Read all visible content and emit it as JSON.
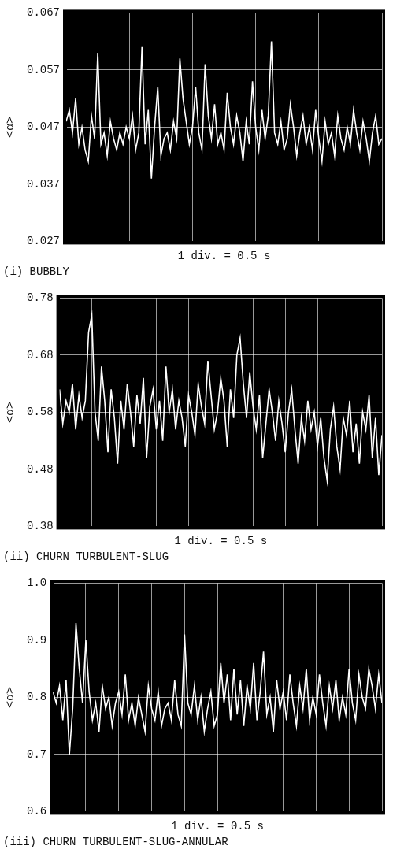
{
  "chart_data": [
    {
      "type": "line",
      "title": "(i) BUBBLY",
      "xlabel": "1 div. = 0.5 s",
      "ylabel": "<α>",
      "x": [
        0,
        0.05,
        0.1,
        0.15,
        0.2,
        0.25,
        0.3,
        0.35,
        0.4,
        0.45,
        0.5,
        0.55,
        0.6,
        0.65,
        0.7,
        0.75,
        0.8,
        0.85,
        0.9,
        0.95,
        1,
        1.05,
        1.1,
        1.15,
        1.2,
        1.25,
        1.3,
        1.35,
        1.4,
        1.45,
        1.5,
        1.55,
        1.6,
        1.65,
        1.7,
        1.75,
        1.8,
        1.85,
        1.9,
        1.95,
        2,
        2.05,
        2.1,
        2.15,
        2.2,
        2.25,
        2.3,
        2.35,
        2.4,
        2.45,
        2.5,
        2.55,
        2.6,
        2.65,
        2.7,
        2.75,
        2.8,
        2.85,
        2.9,
        2.95,
        3,
        3.05,
        3.1,
        3.15,
        3.2,
        3.25,
        3.3,
        3.35,
        3.4,
        3.45,
        3.5,
        3.55,
        3.6,
        3.65,
        3.7,
        3.75,
        3.8,
        3.85,
        3.9,
        3.95,
        4,
        4.05,
        4.1,
        4.15,
        4.2,
        4.25,
        4.3,
        4.35,
        4.4,
        4.45,
        4.5,
        4.55,
        4.6,
        4.65,
        4.7,
        4.75,
        4.8,
        4.85,
        4.9,
        4.95,
        5
      ],
      "values": [
        0.048,
        0.05,
        0.046,
        0.052,
        0.044,
        0.047,
        0.043,
        0.041,
        0.049,
        0.045,
        0.06,
        0.044,
        0.046,
        0.042,
        0.048,
        0.045,
        0.043,
        0.046,
        0.044,
        0.047,
        0.045,
        0.049,
        0.043,
        0.046,
        0.061,
        0.044,
        0.05,
        0.038,
        0.047,
        0.054,
        0.042,
        0.045,
        0.046,
        0.043,
        0.048,
        0.045,
        0.059,
        0.052,
        0.048,
        0.044,
        0.047,
        0.054,
        0.046,
        0.043,
        0.058,
        0.049,
        0.045,
        0.051,
        0.044,
        0.046,
        0.043,
        0.053,
        0.047,
        0.044,
        0.049,
        0.046,
        0.041,
        0.048,
        0.044,
        0.055,
        0.047,
        0.043,
        0.05,
        0.045,
        0.049,
        0.062,
        0.046,
        0.044,
        0.048,
        0.043,
        0.045,
        0.051,
        0.047,
        0.042,
        0.046,
        0.049,
        0.044,
        0.047,
        0.043,
        0.05,
        0.045,
        0.041,
        0.048,
        0.044,
        0.046,
        0.042,
        0.049,
        0.045,
        0.043,
        0.047,
        0.044,
        0.05,
        0.046,
        0.043,
        0.048,
        0.045,
        0.041,
        0.046,
        0.049,
        0.044,
        0.045
      ],
      "color": "#ffffff",
      "xlim": [
        0,
        5
      ],
      "xticks": [
        0,
        0.5,
        1,
        1.5,
        2,
        2.5,
        3,
        3.5,
        4,
        4.5,
        5
      ],
      "ylim": [
        0.027,
        0.067
      ],
      "yticks": [
        0.027,
        0.037,
        0.047,
        0.057,
        0.067
      ],
      "grid": true,
      "tick_labels": "y"
    },
    {
      "type": "line",
      "title": "(ii) CHURN TURBULENT-SLUG",
      "xlabel": "1 div. = 0.5 s",
      "ylabel": "<α>",
      "x": [
        0,
        0.05,
        0.1,
        0.15,
        0.2,
        0.25,
        0.3,
        0.35,
        0.4,
        0.45,
        0.5,
        0.55,
        0.6,
        0.65,
        0.7,
        0.75,
        0.8,
        0.85,
        0.9,
        0.95,
        1,
        1.05,
        1.1,
        1.15,
        1.2,
        1.25,
        1.3,
        1.35,
        1.4,
        1.45,
        1.5,
        1.55,
        1.6,
        1.65,
        1.7,
        1.75,
        1.8,
        1.85,
        1.9,
        1.95,
        2,
        2.05,
        2.1,
        2.15,
        2.2,
        2.25,
        2.3,
        2.35,
        2.4,
        2.45,
        2.5,
        2.55,
        2.6,
        2.65,
        2.7,
        2.75,
        2.8,
        2.85,
        2.9,
        2.95,
        3,
        3.05,
        3.1,
        3.15,
        3.2,
        3.25,
        3.3,
        3.35,
        3.4,
        3.45,
        3.5,
        3.55,
        3.6,
        3.65,
        3.7,
        3.75,
        3.8,
        3.85,
        3.9,
        3.95,
        4,
        4.05,
        4.1,
        4.15,
        4.2,
        4.25,
        4.3,
        4.35,
        4.4,
        4.45,
        4.5,
        4.55,
        4.6,
        4.65,
        4.7,
        4.75,
        4.8,
        4.85,
        4.9,
        4.95,
        5
      ],
      "values": [
        0.62,
        0.56,
        0.6,
        0.58,
        0.63,
        0.55,
        0.61,
        0.57,
        0.6,
        0.72,
        0.75,
        0.58,
        0.53,
        0.66,
        0.6,
        0.51,
        0.62,
        0.57,
        0.49,
        0.6,
        0.55,
        0.63,
        0.58,
        0.52,
        0.61,
        0.56,
        0.64,
        0.5,
        0.59,
        0.62,
        0.55,
        0.6,
        0.53,
        0.66,
        0.58,
        0.62,
        0.55,
        0.6,
        0.57,
        0.52,
        0.61,
        0.58,
        0.54,
        0.63,
        0.59,
        0.56,
        0.67,
        0.61,
        0.55,
        0.58,
        0.64,
        0.6,
        0.52,
        0.62,
        0.57,
        0.68,
        0.71,
        0.63,
        0.57,
        0.65,
        0.59,
        0.55,
        0.61,
        0.5,
        0.56,
        0.62,
        0.58,
        0.53,
        0.6,
        0.56,
        0.51,
        0.58,
        0.62,
        0.55,
        0.49,
        0.57,
        0.53,
        0.6,
        0.55,
        0.58,
        0.52,
        0.57,
        0.5,
        0.46,
        0.55,
        0.59,
        0.52,
        0.48,
        0.57,
        0.54,
        0.6,
        0.51,
        0.56,
        0.49,
        0.58,
        0.55,
        0.61,
        0.5,
        0.57,
        0.47,
        0.54
      ],
      "color": "#ffffff",
      "xlim": [
        0,
        5
      ],
      "xticks": [
        0,
        0.5,
        1,
        1.5,
        2,
        2.5,
        3,
        3.5,
        4,
        4.5,
        5
      ],
      "ylim": [
        0.38,
        0.78
      ],
      "yticks": [
        0.38,
        0.48,
        0.58,
        0.68,
        0.78
      ],
      "grid": true,
      "tick_labels": "y"
    },
    {
      "type": "line",
      "title": "(iii) CHURN TURBULENT-SLUG-ANNULAR",
      "xlabel": "1 div. = 0.5 s",
      "ylabel": "<α>",
      "x": [
        0,
        0.05,
        0.1,
        0.15,
        0.2,
        0.25,
        0.3,
        0.35,
        0.4,
        0.45,
        0.5,
        0.55,
        0.6,
        0.65,
        0.7,
        0.75,
        0.8,
        0.85,
        0.9,
        0.95,
        1,
        1.05,
        1.1,
        1.15,
        1.2,
        1.25,
        1.3,
        1.35,
        1.4,
        1.45,
        1.5,
        1.55,
        1.6,
        1.65,
        1.7,
        1.75,
        1.8,
        1.85,
        1.9,
        1.95,
        2,
        2.05,
        2.1,
        2.15,
        2.2,
        2.25,
        2.3,
        2.35,
        2.4,
        2.45,
        2.5,
        2.55,
        2.6,
        2.65,
        2.7,
        2.75,
        2.8,
        2.85,
        2.9,
        2.95,
        3,
        3.05,
        3.1,
        3.15,
        3.2,
        3.25,
        3.3,
        3.35,
        3.4,
        3.45,
        3.5,
        3.55,
        3.6,
        3.65,
        3.7,
        3.75,
        3.8,
        3.85,
        3.9,
        3.95,
        4,
        4.05,
        4.1,
        4.15,
        4.2,
        4.25,
        4.3,
        4.35,
        4.4,
        4.45,
        4.5,
        4.55,
        4.6,
        4.65,
        4.7,
        4.75,
        4.8,
        4.85,
        4.9,
        4.95,
        5
      ],
      "values": [
        0.81,
        0.79,
        0.82,
        0.76,
        0.83,
        0.7,
        0.78,
        0.93,
        0.85,
        0.79,
        0.9,
        0.81,
        0.76,
        0.79,
        0.74,
        0.82,
        0.78,
        0.8,
        0.75,
        0.79,
        0.81,
        0.77,
        0.84,
        0.76,
        0.79,
        0.75,
        0.8,
        0.77,
        0.74,
        0.82,
        0.78,
        0.76,
        0.81,
        0.75,
        0.78,
        0.79,
        0.76,
        0.83,
        0.77,
        0.75,
        0.91,
        0.79,
        0.77,
        0.82,
        0.76,
        0.8,
        0.74,
        0.78,
        0.81,
        0.75,
        0.77,
        0.86,
        0.79,
        0.84,
        0.76,
        0.85,
        0.77,
        0.83,
        0.75,
        0.82,
        0.78,
        0.86,
        0.76,
        0.81,
        0.88,
        0.77,
        0.8,
        0.74,
        0.83,
        0.78,
        0.81,
        0.76,
        0.84,
        0.79,
        0.75,
        0.82,
        0.78,
        0.85,
        0.76,
        0.8,
        0.77,
        0.84,
        0.79,
        0.75,
        0.82,
        0.78,
        0.83,
        0.76,
        0.8,
        0.77,
        0.85,
        0.79,
        0.76,
        0.84,
        0.8,
        0.78,
        0.85,
        0.82,
        0.78,
        0.84,
        0.79
      ],
      "color": "#ffffff",
      "xlim": [
        0,
        5
      ],
      "xticks": [
        0,
        0.5,
        1,
        1.5,
        2,
        2.5,
        3,
        3.5,
        4,
        4.5,
        5
      ],
      "ylim": [
        0.6,
        1.0
      ],
      "yticks": [
        0.6,
        0.7,
        0.8,
        0.9,
        {
          "value": 1,
          "label": "1.0"
        }
      ],
      "grid": true,
      "tick_labels": "y"
    }
  ]
}
